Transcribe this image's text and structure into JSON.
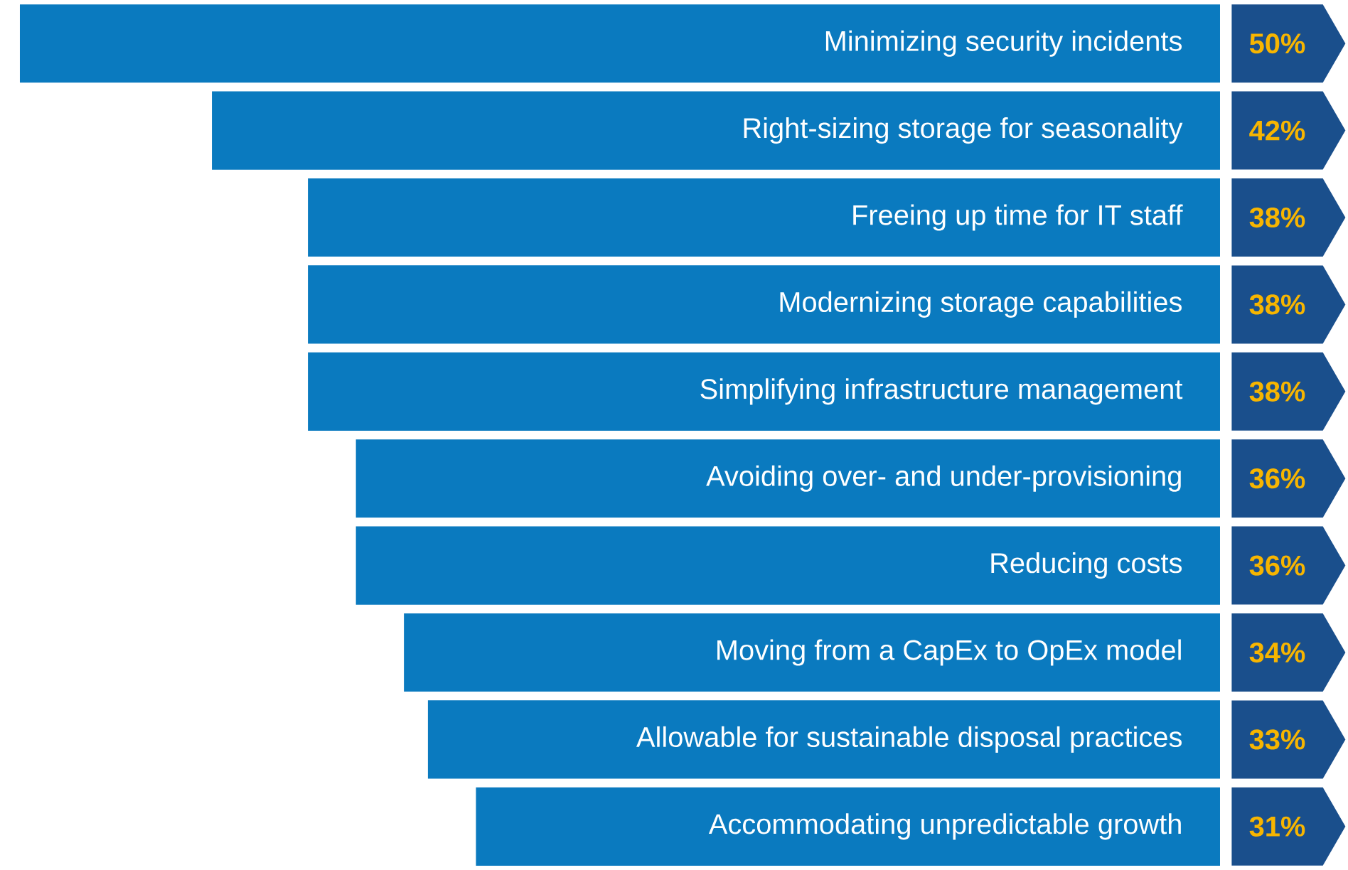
{
  "chart_data": {
    "type": "bar",
    "orientation": "horizontal",
    "categories": [
      "Minimizing security incidents",
      "Right-sizing storage for seasonality",
      "Freeing up time for IT staff",
      "Modernizing storage capabilities",
      "Simplifying infrastructure management",
      "Avoiding over- and under-provisioning",
      "Reducing costs",
      "Moving from a CapEx to OpEx model",
      "Allowable for sustainable disposal practices",
      "Accommodating unpredictable growth"
    ],
    "values": [
      50,
      42,
      38,
      38,
      38,
      36,
      36,
      34,
      33,
      31
    ],
    "value_labels": [
      "50%",
      "42%",
      "38%",
      "38%",
      "38%",
      "36%",
      "36%",
      "34%",
      "33%",
      "31%"
    ],
    "color": "#0a7abf",
    "xlim": [
      50,
      0
    ]
  }
}
